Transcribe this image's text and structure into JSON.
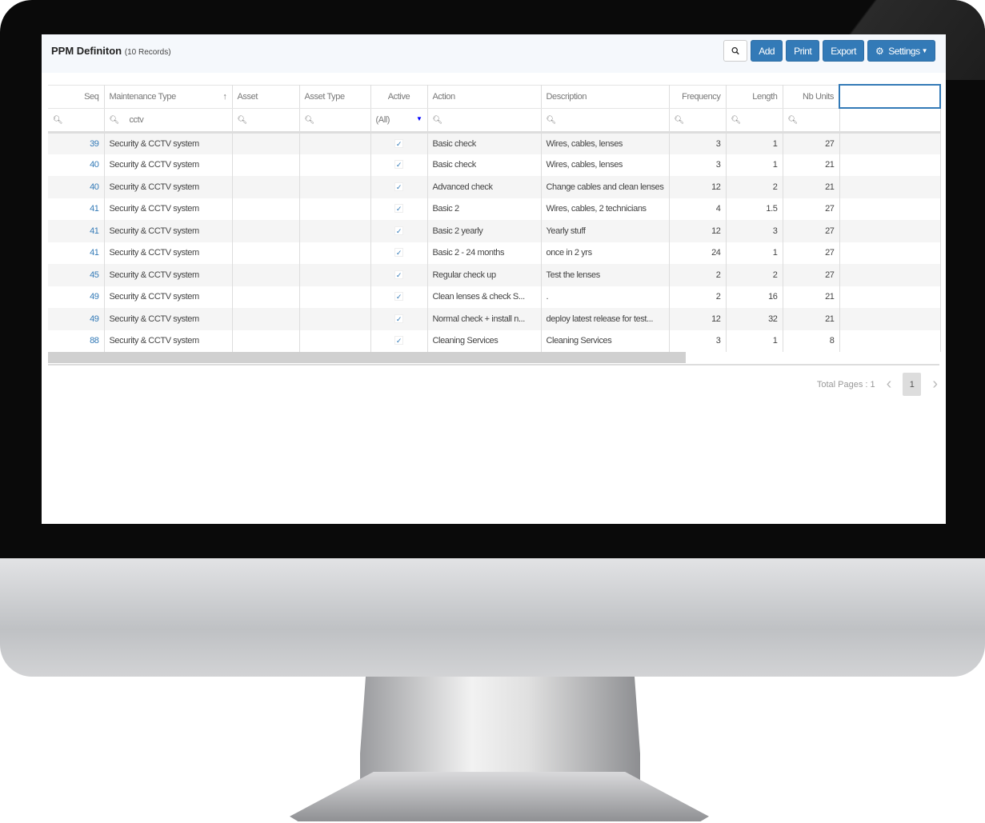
{
  "header": {
    "title": "PPM Definiton",
    "record_count": "(10 Records)"
  },
  "toolbar": {
    "search_icon": "search-icon",
    "add": "Add",
    "print": "Print",
    "export": "Export",
    "settings": "Settings"
  },
  "columns": [
    "Seq",
    "Maintenance Type",
    "Asset",
    "Asset Type",
    "Active",
    "Action",
    "Description",
    "Frequency",
    "Length",
    "Nb Units"
  ],
  "filters": {
    "maintenance_type": "cctv",
    "active": "(All)"
  },
  "rows": [
    [
      "39",
      "Security & CCTV system",
      "",
      "",
      "✓",
      "Basic check",
      "Wires, cables, lenses",
      "3",
      "1",
      "27"
    ],
    [
      "40",
      "Security & CCTV system",
      "",
      "",
      "✓",
      "Basic check",
      "Wires, cables, lenses",
      "3",
      "1",
      "21"
    ],
    [
      "40",
      "Security & CCTV system",
      "",
      "",
      "✓",
      "Advanced check",
      "Change cables and clean lenses",
      "12",
      "2",
      "21"
    ],
    [
      "41",
      "Security & CCTV system",
      "",
      "",
      "✓",
      "Basic 2",
      "Wires, cables, 2 technicians",
      "4",
      "1.5",
      "27"
    ],
    [
      "41",
      "Security & CCTV system",
      "",
      "",
      "✓",
      "Basic 2 yearly",
      "Yearly stuff",
      "12",
      "3",
      "27"
    ],
    [
      "41",
      "Security & CCTV system",
      "",
      "",
      "✓",
      "Basic 2 - 24 months",
      "once in 2 yrs",
      "24",
      "1",
      "27"
    ],
    [
      "45",
      "Security & CCTV system",
      "",
      "",
      "✓",
      "Regular check up",
      "Test the lenses",
      "2",
      "2",
      "27"
    ],
    [
      "49",
      "Security & CCTV system",
      "",
      "",
      "✓",
      "Clean lenses & check S...",
      "",
      "2",
      "16",
      "21"
    ],
    [
      "49",
      "Security & CCTV system",
      "",
      "",
      "✓",
      "Normal check + install n...",
      "deploy latest release for test...",
      "12",
      "32",
      "21"
    ],
    [
      "88",
      "Security & CCTV system",
      "",
      "",
      "✓",
      "Cleaning Services",
      "Cleaning Services",
      "3",
      "1",
      "8"
    ]
  ],
  "rows_desc_fix": {
    "7": "."
  },
  "pager": {
    "total_label": "Total Pages : 1",
    "current": "1"
  },
  "colors": {
    "accent": "#337ab7"
  }
}
